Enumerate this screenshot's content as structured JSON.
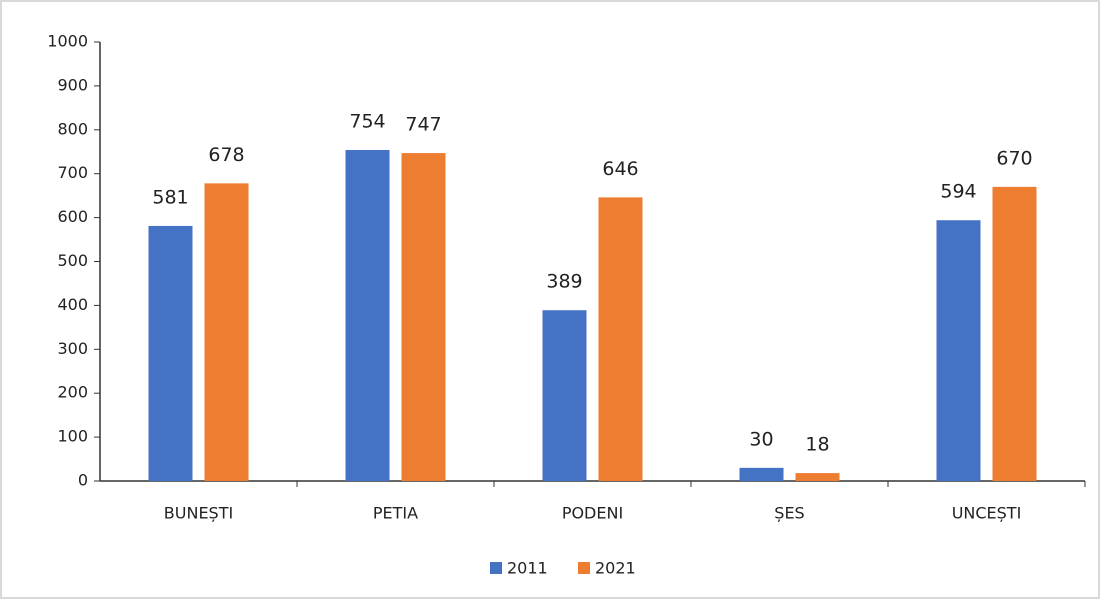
{
  "chart_data": {
    "type": "bar",
    "categories": [
      "BUNEȘTI",
      "PETIA",
      "PODENI",
      "ȘES",
      "UNCEȘTI"
    ],
    "series": [
      {
        "name": "2011",
        "color": "#4472c4",
        "values": [
          581,
          754,
          389,
          30,
          594
        ]
      },
      {
        "name": "2021",
        "color": "#ed7d31",
        "values": [
          678,
          747,
          646,
          18,
          670
        ]
      }
    ],
    "ylim": [
      0,
      1000
    ],
    "yticks": [
      0,
      100,
      200,
      300,
      400,
      500,
      600,
      700,
      800,
      900,
      1000
    ],
    "grid": false,
    "legend": "bottom",
    "data_labels": true
  }
}
